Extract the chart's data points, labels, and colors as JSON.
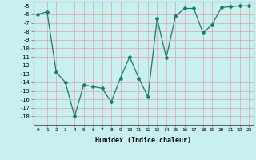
{
  "x": [
    0,
    1,
    2,
    3,
    4,
    5,
    6,
    7,
    8,
    9,
    10,
    11,
    12,
    13,
    14,
    15,
    16,
    17,
    18,
    19,
    20,
    21,
    22,
    23
  ],
  "y": [
    -6.0,
    -5.7,
    -12.8,
    -14.0,
    -18.0,
    -14.3,
    -14.5,
    -14.7,
    -16.3,
    -13.5,
    -11.0,
    -13.5,
    -15.7,
    -6.5,
    -11.1,
    -6.2,
    -5.3,
    -5.3,
    -8.2,
    -7.2,
    -5.2,
    -5.1,
    -5.0,
    -5.0
  ],
  "line_color": "#1a7a6e",
  "marker": "D",
  "marker_size": 2.0,
  "bg_color": "#c8f0f0",
  "grid_color": "#e8a0a0",
  "xlabel": "Humidex (Indice chaleur)",
  "ylim": [
    -19,
    -4.5
  ],
  "xlim": [
    -0.5,
    23.5
  ],
  "yticks": [
    -5,
    -6,
    -7,
    -8,
    -9,
    -10,
    -11,
    -12,
    -13,
    -14,
    -15,
    -16,
    -17,
    -18
  ],
  "xtick_labels": [
    "0",
    "1",
    "2",
    "3",
    "4",
    "5",
    "6",
    "7",
    "8",
    "9",
    "10",
    "11",
    "12",
    "13",
    "14",
    "15",
    "16",
    "17",
    "18",
    "19",
    "20",
    "21",
    "22",
    "23"
  ]
}
